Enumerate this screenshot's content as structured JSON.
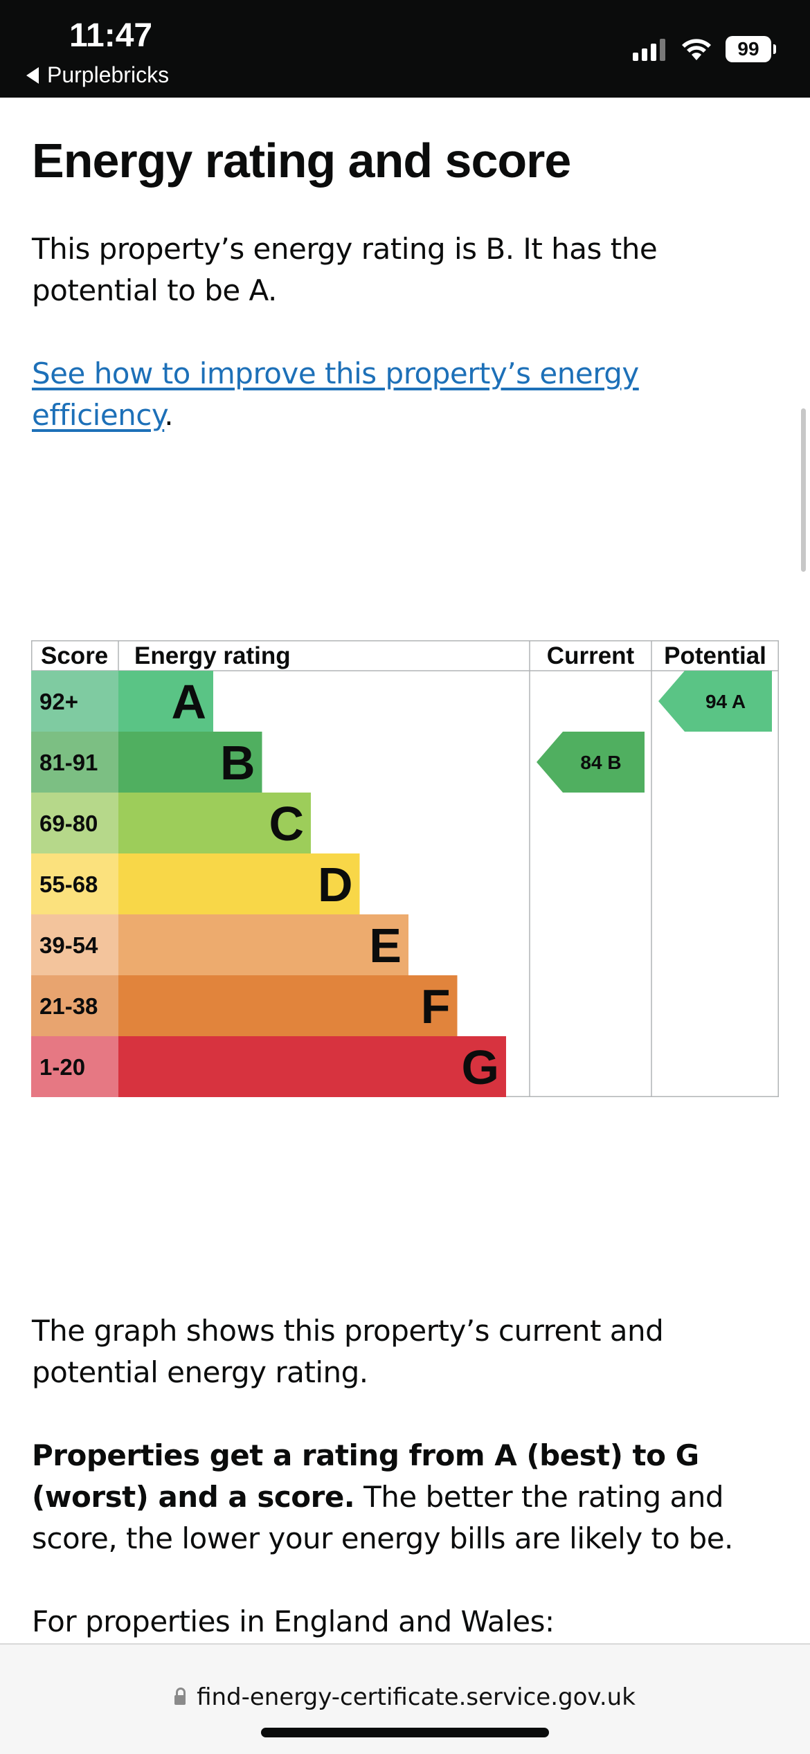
{
  "status_bar": {
    "time": "11:47",
    "back_app": "Purplebricks",
    "battery": "99"
  },
  "page": {
    "title": "Energy rating and score",
    "intro": "This property’s energy rating is B. It has the potential to be A.",
    "improve_link": "See how to improve this property’s energy efficiency",
    "improve_link_suffix": ".",
    "graph_text": "The graph shows this property’s current and potential energy rating.",
    "grade_bold": "Properties get a rating from A (best) to G (worst) and a score.",
    "grade_rest": " The better the rating and score, the lower your energy bills are likely to be.",
    "england_text": "For properties in England and Wales:"
  },
  "chart_data": {
    "type": "table",
    "headers": {
      "score": "Score",
      "rating": "Energy rating",
      "current": "Current",
      "potential": "Potential"
    },
    "bands": [
      {
        "letter": "A",
        "range": "92+",
        "color": "#5ac485",
        "score_bg": "#7fcba1"
      },
      {
        "letter": "B",
        "range": "81-91",
        "color": "#50af60",
        "score_bg": "#7cbf83"
      },
      {
        "letter": "C",
        "range": "69-80",
        "color": "#9dcd5a",
        "score_bg": "#b6d88a"
      },
      {
        "letter": "D",
        "range": "55-68",
        "color": "#f8d748",
        "score_bg": "#fbe17d"
      },
      {
        "letter": "E",
        "range": "39-54",
        "color": "#edab6e",
        "score_bg": "#f3c49c"
      },
      {
        "letter": "F",
        "range": "21-38",
        "color": "#e1843c",
        "score_bg": "#e8a46f"
      },
      {
        "letter": "G",
        "range": "1-20",
        "color": "#d7333f",
        "score_bg": "#e67883"
      }
    ],
    "current": {
      "score": "84",
      "letter": "B"
    },
    "potential": {
      "score": "94",
      "letter": "A"
    }
  },
  "url_bar": {
    "domain": "find-energy-certificate.service.gov.uk"
  }
}
